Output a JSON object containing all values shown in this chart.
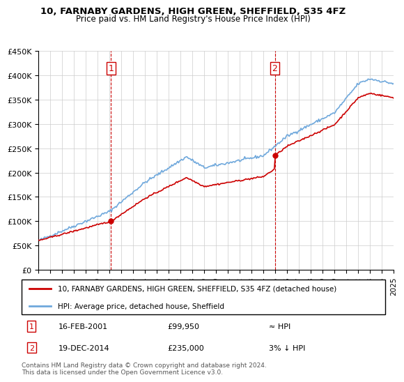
{
  "title": "10, FARNABY GARDENS, HIGH GREEN, SHEFFIELD, S35 4FZ",
  "subtitle": "Price paid vs. HM Land Registry's House Price Index (HPI)",
  "legend_line1": "10, FARNABY GARDENS, HIGH GREEN, SHEFFIELD, S35 4FZ (detached house)",
  "legend_line2": "HPI: Average price, detached house, Sheffield",
  "annotation1_label": "1",
  "annotation1_date": "16-FEB-2001",
  "annotation1_price": "£99,950",
  "annotation1_hpi": "≈ HPI",
  "annotation2_label": "2",
  "annotation2_date": "19-DEC-2014",
  "annotation2_price": "£235,000",
  "annotation2_hpi": "3% ↓ HPI",
  "footnote": "Contains HM Land Registry data © Crown copyright and database right 2024.\nThis data is licensed under the Open Government Licence v3.0.",
  "sale1_year": 2001.12,
  "sale1_price": 99950,
  "sale2_year": 2014.96,
  "sale2_price": 235000,
  "xmin": 1995,
  "xmax": 2025,
  "ymin": 0,
  "ymax": 450000,
  "yticks": [
    0,
    50000,
    100000,
    150000,
    200000,
    250000,
    300000,
    350000,
    400000,
    450000
  ],
  "xticks": [
    1995,
    1996,
    1997,
    1998,
    1999,
    2000,
    2001,
    2002,
    2003,
    2004,
    2005,
    2006,
    2007,
    2008,
    2009,
    2010,
    2011,
    2012,
    2013,
    2014,
    2015,
    2016,
    2017,
    2018,
    2019,
    2020,
    2021,
    2022,
    2023,
    2024,
    2025
  ],
  "hpi_color": "#6fa8dc",
  "price_color": "#cc0000",
  "vline_color": "#cc0000",
  "background_color": "#ffffff",
  "grid_color": "#cccccc"
}
